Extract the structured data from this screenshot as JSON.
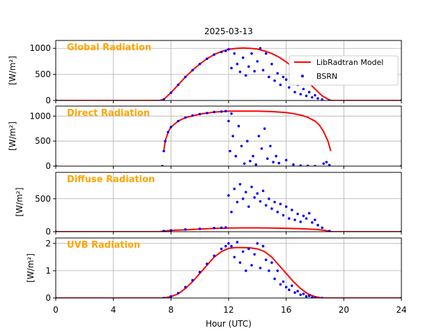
{
  "figure": {
    "title": "2025-03-13",
    "xlabel": "Hour (UTC)",
    "xticks": [
      "0",
      "4",
      "8",
      "12",
      "16",
      "20",
      "24"
    ],
    "colors": {
      "model": "#ff0000",
      "bsrn": "#0000ff",
      "panel_title": "#ffa500",
      "grid": "#b0b0b0"
    },
    "legend": {
      "position": "top-right",
      "entries": [
        "LibRadtran Model",
        "BSRN"
      ]
    }
  },
  "chart_data": [
    {
      "type": "line",
      "title": "Global Radiation",
      "ylabel": "[W/m²]",
      "xlim": [
        0,
        24
      ],
      "ylim": [
        0,
        1150
      ],
      "yticks": [
        0,
        500,
        1000
      ],
      "grid": true,
      "series": [
        {
          "name": "LibRadtran Model",
          "style": "line",
          "x": [
            0,
            7.2,
            7.5,
            8,
            8.5,
            9,
            9.5,
            10,
            10.5,
            11,
            11.5,
            12,
            12.5,
            13,
            13.5,
            14,
            14.5,
            15,
            15.5,
            16,
            16.5,
            17,
            17.5,
            18,
            18.5,
            19,
            19.2,
            24
          ],
          "y": [
            0,
            0,
            20,
            150,
            300,
            450,
            580,
            700,
            800,
            880,
            940,
            980,
            998,
            1005,
            1000,
            985,
            950,
            900,
            830,
            740,
            630,
            500,
            360,
            220,
            90,
            10,
            0,
            0
          ]
        },
        {
          "name": "BSRN",
          "style": "scatter",
          "x": [
            0,
            7.5,
            8,
            8.5,
            9,
            9.5,
            10,
            10.5,
            11,
            11.5,
            11.8,
            12,
            12.2,
            12.4,
            12.6,
            12.8,
            13,
            13.2,
            13.4,
            13.6,
            13.8,
            14,
            14.2,
            14.4,
            14.6,
            14.8,
            15,
            15.2,
            15.4,
            15.6,
            15.8,
            16,
            16.2,
            16.4,
            16.6,
            16.8,
            17,
            17.2,
            17.4,
            17.6,
            17.8,
            18,
            18.2,
            18.5,
            19,
            24
          ],
          "y": [
            0,
            20,
            150,
            300,
            450,
            580,
            700,
            800,
            880,
            930,
            950,
            980,
            620,
            900,
            700,
            550,
            820,
            480,
            650,
            900,
            560,
            750,
            1000,
            580,
            900,
            450,
            700,
            380,
            520,
            300,
            450,
            400,
            250,
            350,
            160,
            300,
            120,
            220,
            90,
            160,
            60,
            100,
            40,
            20,
            0,
            0
          ]
        }
      ]
    },
    {
      "type": "line",
      "title": "Direct Radiation",
      "ylabel": "[W/m²]",
      "xlim": [
        0,
        24
      ],
      "ylim": [
        0,
        1200
      ],
      "yticks": [
        0,
        500,
        1000
      ],
      "grid": true,
      "series": [
        {
          "name": "LibRadtran Model",
          "style": "line",
          "x": [
            7.5,
            7.6,
            7.8,
            8,
            8.5,
            9,
            10,
            11,
            12,
            13,
            14,
            15,
            16,
            16.5,
            17,
            17.5,
            18,
            18.3,
            18.6,
            18.9,
            19.1
          ],
          "y": [
            300,
            500,
            680,
            780,
            900,
            970,
            1040,
            1080,
            1100,
            1100,
            1098,
            1090,
            1070,
            1050,
            1020,
            975,
            900,
            820,
            690,
            500,
            300
          ]
        },
        {
          "name": "BSRN",
          "style": "scatter",
          "x": [
            0,
            7.4,
            7.5,
            7.6,
            7.8,
            8,
            8.5,
            9,
            9.5,
            10,
            10.5,
            11,
            11.5,
            11.8,
            12,
            12.1,
            12.2,
            12.3,
            12.5,
            12.7,
            12.9,
            13.1,
            13.3,
            13.5,
            13.7,
            13.9,
            14.1,
            14.3,
            14.5,
            14.7,
            14.9,
            15.1,
            15.3,
            15.5,
            16,
            16.5,
            17,
            17.5,
            18,
            18.6,
            18.8,
            19,
            24
          ],
          "y": [
            0,
            0,
            300,
            500,
            680,
            780,
            900,
            970,
            1010,
            1040,
            1060,
            1080,
            1090,
            1100,
            900,
            300,
            1050,
            600,
            200,
            800,
            400,
            50,
            500,
            100,
            200,
            30,
            600,
            350,
            750,
            150,
            400,
            80,
            200,
            60,
            120,
            30,
            10,
            5,
            0,
            50,
            80,
            20,
            0
          ]
        }
      ]
    },
    {
      "type": "line",
      "title": "Diffuse Radiation",
      "ylabel": "[W/m²]",
      "xlim": [
        0,
        24
      ],
      "ylim": [
        0,
        900
      ],
      "yticks": [
        0,
        500
      ],
      "grid": true,
      "series": [
        {
          "name": "LibRadtran Model",
          "style": "line",
          "x": [
            0,
            7.2,
            7.5,
            8,
            9,
            10,
            11,
            12,
            13,
            14,
            15,
            16,
            17,
            18,
            18.5,
            19,
            19.2,
            24
          ],
          "y": [
            0,
            0,
            10,
            20,
            30,
            40,
            50,
            55,
            58,
            58,
            56,
            52,
            46,
            36,
            25,
            10,
            0,
            0
          ]
        },
        {
          "name": "BSRN",
          "style": "scatter",
          "x": [
            0,
            7.5,
            8,
            9,
            10,
            11,
            11.5,
            11.8,
            12,
            12.2,
            12.4,
            12.6,
            12.8,
            13,
            13.2,
            13.4,
            13.6,
            13.8,
            14,
            14.2,
            14.4,
            14.6,
            14.8,
            15,
            15.2,
            15.4,
            15.6,
            15.8,
            16,
            16.2,
            16.4,
            16.6,
            16.8,
            17,
            17.2,
            17.4,
            17.6,
            17.8,
            18,
            18.2,
            18.5,
            19,
            24
          ],
          "y": [
            0,
            10,
            20,
            35,
            45,
            55,
            60,
            65,
            550,
            300,
            650,
            450,
            720,
            500,
            600,
            380,
            680,
            520,
            580,
            460,
            620,
            400,
            500,
            350,
            450,
            300,
            420,
            250,
            380,
            200,
            330,
            180,
            270,
            150,
            240,
            200,
            280,
            140,
            180,
            100,
            60,
            10,
            0
          ]
        }
      ]
    },
    {
      "type": "line",
      "title": "UVB Radiation",
      "ylabel": "[W/m²]",
      "xlim": [
        0,
        24
      ],
      "ylim": [
        0,
        2.2
      ],
      "yticks": [
        0,
        1,
        2
      ],
      "grid": true,
      "series": [
        {
          "name": "LibRadtran Model",
          "style": "line",
          "x": [
            0,
            7.5,
            8,
            8.5,
            9,
            9.5,
            10,
            10.5,
            11,
            11.5,
            12,
            12.5,
            13,
            13.5,
            14,
            14.5,
            15,
            15.5,
            16,
            16.5,
            17,
            17.5,
            18,
            18.5,
            24
          ],
          "y": [
            0,
            0,
            0.05,
            0.15,
            0.35,
            0.6,
            0.9,
            1.2,
            1.5,
            1.7,
            1.82,
            1.85,
            1.85,
            1.84,
            1.8,
            1.7,
            1.5,
            1.2,
            0.9,
            0.6,
            0.35,
            0.15,
            0.05,
            0,
            0
          ]
        },
        {
          "name": "BSRN",
          "style": "scatter",
          "x": [
            0,
            7.5,
            8,
            8.5,
            9,
            9.5,
            10,
            10.5,
            11,
            11.5,
            11.8,
            12,
            12.2,
            12.4,
            12.6,
            12.8,
            13,
            13.2,
            13.4,
            13.6,
            13.8,
            14,
            14.2,
            14.4,
            14.6,
            14.8,
            15,
            15.2,
            15.4,
            15.6,
            15.8,
            16,
            16.2,
            16.4,
            16.6,
            16.8,
            17,
            17.2,
            17.4,
            17.6,
            17.8,
            18,
            18.5,
            24
          ],
          "y": [
            0,
            0,
            0.06,
            0.18,
            0.4,
            0.65,
            0.95,
            1.25,
            1.55,
            1.8,
            1.9,
            2.0,
            1.9,
            1.5,
            2.05,
            1.3,
            1.7,
            1.0,
            1.8,
            1.2,
            1.6,
            2.0,
            1.1,
            1.9,
            1.4,
            1.0,
            1.3,
            0.7,
            1.0,
            0.5,
            0.6,
            0.4,
            0.3,
            0.45,
            0.2,
            0.25,
            0.12,
            0.15,
            0.06,
            0.08,
            0.02,
            0.01,
            0,
            0
          ]
        }
      ]
    }
  ]
}
